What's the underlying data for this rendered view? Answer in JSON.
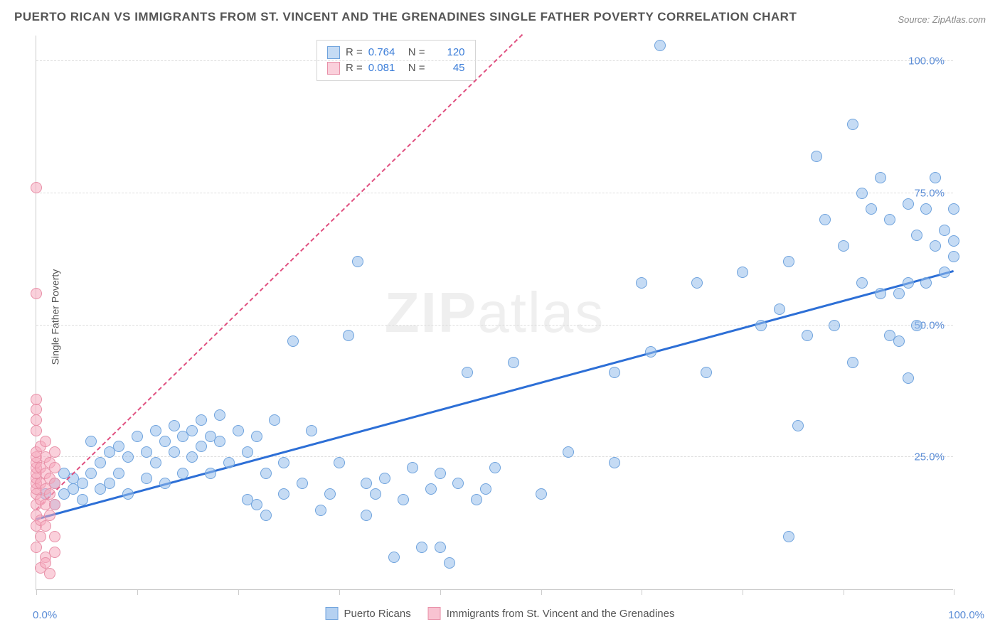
{
  "title": "PUERTO RICAN VS IMMIGRANTS FROM ST. VINCENT AND THE GRENADINES SINGLE FATHER POVERTY CORRELATION CHART",
  "source": "Source: ZipAtlas.com",
  "watermark_bold": "ZIP",
  "watermark_thin": "atlas",
  "ylabel": "Single Father Poverty",
  "chart": {
    "type": "scatter",
    "xlim": [
      0,
      100
    ],
    "ylim": [
      0,
      105
    ],
    "xtick_positions": [
      0,
      11,
      22,
      33,
      44,
      55,
      66,
      77,
      88,
      100
    ],
    "ytick_labels": [
      "25.0%",
      "50.0%",
      "75.0%",
      "100.0%"
    ],
    "ytick_values": [
      25,
      50,
      75,
      100
    ],
    "xtick_label_left": "0.0%",
    "xtick_label_right": "100.0%",
    "background_color": "#ffffff",
    "grid_color": "#dddddd",
    "marker_radius": 8,
    "series": [
      {
        "name": "Puerto Ricans",
        "fill": "rgba(150,190,235,0.55)",
        "stroke": "#6fa3dd",
        "trend_color": "#2d6fd6",
        "trend_width": 3,
        "trend_dash": "solid",
        "trend_line": {
          "x1": 0,
          "y1": 13,
          "x2": 100,
          "y2": 60
        },
        "R": "0.764",
        "N": "120",
        "points": [
          [
            1,
            18
          ],
          [
            2,
            20
          ],
          [
            2,
            16
          ],
          [
            3,
            22
          ],
          [
            3,
            18
          ],
          [
            4,
            19
          ],
          [
            4,
            21
          ],
          [
            5,
            20
          ],
          [
            5,
            17
          ],
          [
            6,
            22
          ],
          [
            6,
            28
          ],
          [
            7,
            19
          ],
          [
            7,
            24
          ],
          [
            8,
            26
          ],
          [
            8,
            20
          ],
          [
            9,
            27
          ],
          [
            9,
            22
          ],
          [
            10,
            25
          ],
          [
            10,
            18
          ],
          [
            11,
            29
          ],
          [
            12,
            26
          ],
          [
            12,
            21
          ],
          [
            13,
            30
          ],
          [
            13,
            24
          ],
          [
            14,
            28
          ],
          [
            14,
            20
          ],
          [
            15,
            31
          ],
          [
            15,
            26
          ],
          [
            16,
            29
          ],
          [
            16,
            22
          ],
          [
            17,
            30
          ],
          [
            17,
            25
          ],
          [
            18,
            32
          ],
          [
            18,
            27
          ],
          [
            19,
            29
          ],
          [
            19,
            22
          ],
          [
            20,
            33
          ],
          [
            20,
            28
          ],
          [
            21,
            24
          ],
          [
            22,
            30
          ],
          [
            23,
            17
          ],
          [
            23,
            26
          ],
          [
            24,
            16
          ],
          [
            24,
            29
          ],
          [
            25,
            14
          ],
          [
            25,
            22
          ],
          [
            26,
            32
          ],
          [
            27,
            18
          ],
          [
            27,
            24
          ],
          [
            28,
            47
          ],
          [
            29,
            20
          ],
          [
            30,
            30
          ],
          [
            31,
            15
          ],
          [
            32,
            18
          ],
          [
            33,
            24
          ],
          [
            34,
            48
          ],
          [
            35,
            62
          ],
          [
            36,
            14
          ],
          [
            36,
            20
          ],
          [
            37,
            18
          ],
          [
            38,
            21
          ],
          [
            39,
            6
          ],
          [
            40,
            17
          ],
          [
            41,
            23
          ],
          [
            42,
            8
          ],
          [
            43,
            19
          ],
          [
            44,
            22
          ],
          [
            44,
            8
          ],
          [
            45,
            5
          ],
          [
            46,
            20
          ],
          [
            47,
            41
          ],
          [
            48,
            17
          ],
          [
            49,
            19
          ],
          [
            50,
            23
          ],
          [
            52,
            43
          ],
          [
            55,
            18
          ],
          [
            58,
            26
          ],
          [
            63,
            24
          ],
          [
            63,
            41
          ],
          [
            66,
            58
          ],
          [
            67,
            45
          ],
          [
            68,
            103
          ],
          [
            72,
            58
          ],
          [
            73,
            41
          ],
          [
            77,
            60
          ],
          [
            79,
            50
          ],
          [
            81,
            53
          ],
          [
            82,
            10
          ],
          [
            82,
            62
          ],
          [
            83,
            31
          ],
          [
            84,
            48
          ],
          [
            85,
            82
          ],
          [
            86,
            70
          ],
          [
            87,
            50
          ],
          [
            88,
            65
          ],
          [
            89,
            43
          ],
          [
            89,
            88
          ],
          [
            90,
            58
          ],
          [
            90,
            75
          ],
          [
            91,
            72
          ],
          [
            92,
            56
          ],
          [
            92,
            78
          ],
          [
            93,
            70
          ],
          [
            93,
            48
          ],
          [
            94,
            47
          ],
          [
            94,
            56
          ],
          [
            95,
            58
          ],
          [
            95,
            73
          ],
          [
            95,
            40
          ],
          [
            96,
            50
          ],
          [
            96,
            67
          ],
          [
            97,
            72
          ],
          [
            97,
            58
          ],
          [
            98,
            65
          ],
          [
            98,
            78
          ],
          [
            99,
            60
          ],
          [
            99,
            68
          ],
          [
            100,
            63
          ],
          [
            100,
            72
          ],
          [
            100,
            66
          ]
        ]
      },
      {
        "name": "Immigrants from St. Vincent and the Grenadines",
        "fill": "rgba(245,170,190,0.55)",
        "stroke": "#e890a8",
        "trend_color": "#e05080",
        "trend_width": 2,
        "trend_dash": "dashed",
        "trend_line": {
          "x1": 0,
          "y1": 15,
          "x2": 53,
          "y2": 105
        },
        "R": "0.081",
        "N": "45",
        "points": [
          [
            0,
            8
          ],
          [
            0,
            12
          ],
          [
            0,
            14
          ],
          [
            0,
            16
          ],
          [
            0,
            18
          ],
          [
            0,
            19
          ],
          [
            0,
            20
          ],
          [
            0,
            21
          ],
          [
            0,
            22
          ],
          [
            0,
            23
          ],
          [
            0,
            24
          ],
          [
            0,
            25
          ],
          [
            0,
            26
          ],
          [
            0,
            30
          ],
          [
            0,
            32
          ],
          [
            0,
            34
          ],
          [
            0,
            36
          ],
          [
            0,
            56
          ],
          [
            0,
            76
          ],
          [
            0.5,
            10
          ],
          [
            0.5,
            13
          ],
          [
            0.5,
            17
          ],
          [
            0.5,
            20
          ],
          [
            0.5,
            23
          ],
          [
            0.5,
            27
          ],
          [
            0.5,
            4
          ],
          [
            1,
            6
          ],
          [
            1,
            12
          ],
          [
            1,
            16
          ],
          [
            1,
            19
          ],
          [
            1,
            22
          ],
          [
            1,
            25
          ],
          [
            1,
            28
          ],
          [
            1,
            5
          ],
          [
            1.5,
            14
          ],
          [
            1.5,
            18
          ],
          [
            1.5,
            21
          ],
          [
            1.5,
            24
          ],
          [
            1.5,
            3
          ],
          [
            2,
            16
          ],
          [
            2,
            20
          ],
          [
            2,
            23
          ],
          [
            2,
            26
          ],
          [
            2,
            10
          ],
          [
            2,
            7
          ]
        ]
      }
    ]
  },
  "legend_bottom": [
    {
      "label": "Puerto Ricans",
      "fill": "rgba(150,190,235,0.7)",
      "stroke": "#6fa3dd"
    },
    {
      "label": "Immigrants from St. Vincent and the Grenadines",
      "fill": "rgba(245,170,190,0.7)",
      "stroke": "#e890a8"
    }
  ]
}
